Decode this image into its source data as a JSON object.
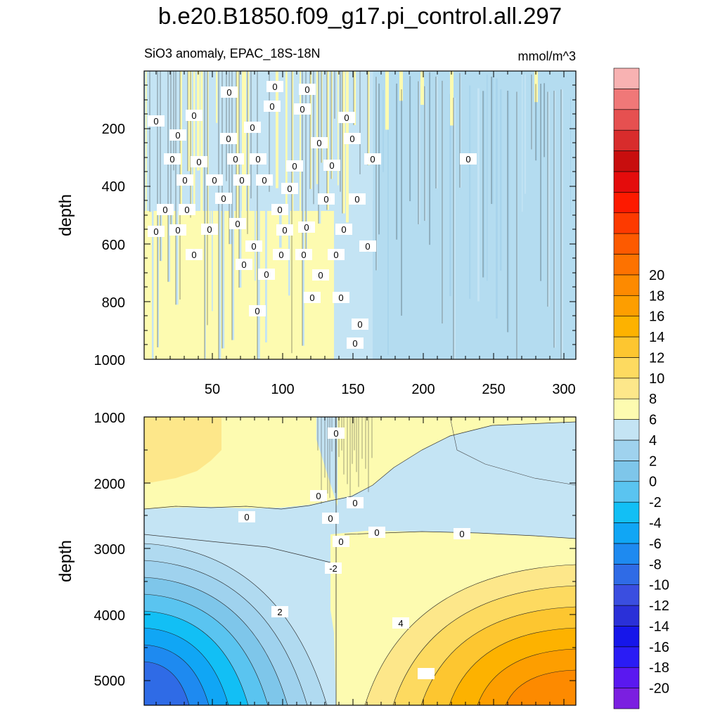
{
  "title": "b.e20.B1850.f09_g17.pi_control.all.297",
  "colorbar": {
    "colors": [
      "#7b1fe0",
      "#5a18f0",
      "#2a1cf5",
      "#1616ea",
      "#2a30d8",
      "#3a4ee0",
      "#2f6be6",
      "#1e8af0",
      "#10a6f5",
      "#12bff5",
      "#5ac4f0",
      "#7ec6ea",
      "#9fd2ee",
      "#c4e4f4",
      "#fdfbb0",
      "#fde78a",
      "#fdda60",
      "#fdc630",
      "#fdb200",
      "#fd9e00",
      "#fd8a00",
      "#fd7200",
      "#fd5a00",
      "#fd3a00",
      "#fd1a00",
      "#e40c0c",
      "#c80e0e",
      "#d82c2c",
      "#e65050",
      "#f07878",
      "#f8b2b2"
    ],
    "labels": [
      "-20",
      "-18",
      "-16",
      "-14",
      "-12",
      "-10",
      "-8",
      "-6",
      "-4",
      "-2",
      "0",
      "2",
      "4",
      "6",
      "8",
      "10",
      "12",
      "14",
      "16",
      "18",
      "20"
    ]
  },
  "chart_data": [
    {
      "type": "heatmap",
      "title": "SiO3 anomaly, EPAC_18S-18N",
      "units": "mmol/m^3",
      "ylabel": "depth",
      "xlabel": "",
      "xlim": [
        1,
        310
      ],
      "ylim": [
        1000,
        0
      ],
      "xticks": [
        "50",
        "100",
        "150",
        "200",
        "250",
        "300"
      ],
      "yticks": [
        "200",
        "400",
        "600",
        "800",
        "1000"
      ],
      "contour_labels": [
        "0"
      ],
      "regions": [
        {
          "x": [
            1,
            165
          ],
          "depth": [
            0,
            1000
          ],
          "value": "0 to 1 / -1 to 0 (alternating)"
        },
        {
          "x": [
            165,
            310
          ],
          "depth": [
            0,
            1000
          ],
          "value": "-1 to 0"
        }
      ]
    },
    {
      "type": "heatmap",
      "ylabel": "depth",
      "xlabel": "",
      "xlim": [
        1,
        310
      ],
      "ylim": [
        5400,
        1000
      ],
      "xticks": [
        "50",
        "100",
        "150",
        "200",
        "250",
        "300"
      ],
      "yticks": [
        "1000",
        "2000",
        "3000",
        "4000",
        "5000"
      ],
      "contour_labels": [
        "0",
        "0",
        "0",
        "0",
        "0",
        "0",
        "0",
        "0",
        "-2",
        "2",
        "4"
      ],
      "regions": [
        {
          "x": [
            1,
            310
          ],
          "depth": [
            1000,
            2400
          ],
          "value": "0 to 2"
        },
        {
          "x": [
            1,
            310
          ],
          "depth": [
            2400,
            2900
          ],
          "value": "-1 to 0"
        },
        {
          "x": [
            1,
            135
          ],
          "depth": [
            3000,
            5400
          ],
          "value": "-8 to -1"
        },
        {
          "x": [
            140,
            310
          ],
          "depth": [
            3000,
            5400
          ],
          "value": "1 to 7"
        }
      ]
    }
  ]
}
